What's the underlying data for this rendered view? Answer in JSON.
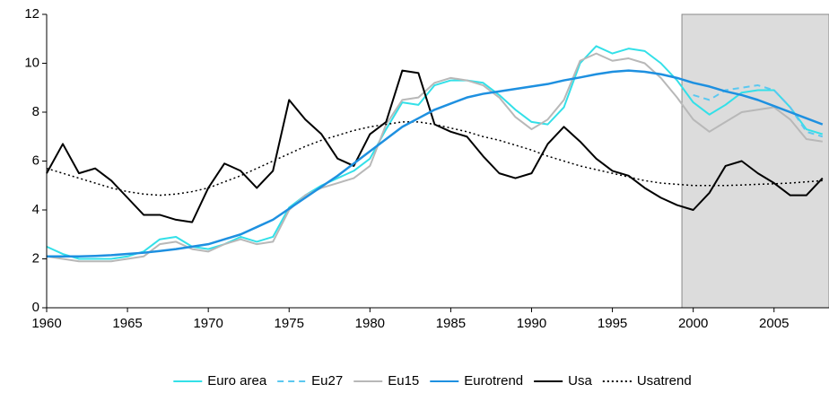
{
  "chart_data": {
    "type": "line",
    "x": [
      1960,
      1961,
      1962,
      1963,
      1964,
      1965,
      1966,
      1967,
      1968,
      1969,
      1970,
      1971,
      1972,
      1973,
      1974,
      1975,
      1976,
      1977,
      1978,
      1979,
      1980,
      1981,
      1982,
      1983,
      1984,
      1985,
      1986,
      1987,
      1988,
      1989,
      1990,
      1991,
      1992,
      1993,
      1994,
      1995,
      1996,
      1997,
      1998,
      1999,
      2000,
      2001,
      2002,
      2003,
      2004,
      2005,
      2006,
      2007,
      2008
    ],
    "xlim": [
      1960,
      2008.4
    ],
    "xticks": [
      1960,
      1965,
      1970,
      1975,
      1980,
      1985,
      1990,
      1995,
      2000,
      2005
    ],
    "ylim": [
      0,
      12
    ],
    "yticks": [
      0,
      2,
      4,
      6,
      8,
      10,
      12
    ],
    "grid": false,
    "shaded_region": [
      1999.3,
      2008.4
    ],
    "legend": "bottom",
    "series": [
      {
        "name": "Euro area",
        "color": "#33e0e8",
        "dash": "solid",
        "values": [
          2.5,
          2.2,
          2.0,
          2.0,
          2.0,
          2.1,
          2.3,
          2.8,
          2.9,
          2.5,
          2.4,
          2.6,
          2.9,
          2.7,
          2.9,
          4.1,
          4.6,
          5.0,
          5.3,
          5.6,
          6.1,
          7.3,
          8.4,
          8.3,
          9.1,
          9.3,
          9.3,
          9.2,
          8.7,
          8.1,
          7.6,
          7.5,
          8.2,
          10.0,
          10.7,
          10.4,
          10.6,
          10.5,
          10.0,
          9.3,
          8.4,
          7.9,
          8.3,
          8.8,
          8.9,
          8.9,
          8.2,
          7.3,
          7.1
        ]
      },
      {
        "name": "Eu27",
        "color": "#5bc8f0",
        "dash": "dashed",
        "values": [
          null,
          null,
          null,
          null,
          null,
          null,
          null,
          null,
          null,
          null,
          null,
          null,
          null,
          null,
          null,
          null,
          null,
          null,
          null,
          null,
          null,
          null,
          null,
          null,
          null,
          null,
          null,
          null,
          null,
          null,
          null,
          null,
          null,
          null,
          null,
          null,
          null,
          null,
          null,
          null,
          8.7,
          8.5,
          8.9,
          9.0,
          9.1,
          8.9,
          8.2,
          7.2,
          7.0
        ]
      },
      {
        "name": "Eu15",
        "color": "#b8b8b8",
        "dash": "solid",
        "values": [
          2.1,
          2.0,
          1.9,
          1.9,
          1.9,
          2.0,
          2.1,
          2.6,
          2.7,
          2.4,
          2.3,
          2.6,
          2.8,
          2.6,
          2.7,
          4.0,
          4.6,
          4.9,
          5.1,
          5.3,
          5.8,
          7.5,
          8.5,
          8.6,
          9.2,
          9.4,
          9.3,
          9.1,
          8.6,
          7.8,
          7.3,
          7.7,
          8.5,
          10.1,
          10.4,
          10.1,
          10.2,
          10.0,
          9.4,
          8.6,
          7.7,
          7.2,
          7.6,
          8.0,
          8.1,
          8.2,
          7.7,
          6.9,
          6.8
        ]
      },
      {
        "name": "Eurotrend",
        "color": "#1e90e0",
        "dash": "solid",
        "values": [
          2.1,
          2.1,
          2.1,
          2.12,
          2.15,
          2.2,
          2.25,
          2.32,
          2.4,
          2.5,
          2.6,
          2.8,
          3.0,
          3.3,
          3.6,
          4.05,
          4.5,
          4.95,
          5.4,
          5.9,
          6.4,
          6.9,
          7.4,
          7.75,
          8.1,
          8.35,
          8.6,
          8.75,
          8.85,
          8.95,
          9.05,
          9.15,
          9.3,
          9.42,
          9.55,
          9.65,
          9.7,
          9.65,
          9.55,
          9.4,
          9.2,
          9.05,
          8.85,
          8.7,
          8.5,
          8.25,
          8.0,
          7.75,
          7.5
        ]
      },
      {
        "name": "Usa",
        "color": "#000000",
        "dash": "solid",
        "values": [
          5.5,
          6.7,
          5.5,
          5.7,
          5.2,
          4.5,
          3.8,
          3.8,
          3.6,
          3.5,
          4.9,
          5.9,
          5.6,
          4.9,
          5.6,
          8.5,
          7.7,
          7.1,
          6.1,
          5.8,
          7.1,
          7.6,
          9.7,
          9.6,
          7.5,
          7.2,
          7.0,
          6.2,
          5.5,
          5.3,
          5.5,
          6.7,
          7.4,
          6.8,
          6.1,
          5.6,
          5.4,
          4.9,
          4.5,
          4.2,
          4.0,
          4.7,
          5.8,
          6.0,
          5.5,
          5.1,
          4.6,
          4.6,
          5.3
        ]
      },
      {
        "name": "Usatrend",
        "color": "#000000",
        "dash": "dotted",
        "values": [
          5.7,
          5.5,
          5.3,
          5.1,
          4.9,
          4.75,
          4.65,
          4.6,
          4.65,
          4.75,
          4.9,
          5.15,
          5.4,
          5.7,
          6.0,
          6.3,
          6.6,
          6.85,
          7.05,
          7.25,
          7.4,
          7.5,
          7.6,
          7.6,
          7.5,
          7.35,
          7.2,
          7.0,
          6.85,
          6.65,
          6.45,
          6.2,
          6.0,
          5.8,
          5.65,
          5.5,
          5.35,
          5.2,
          5.1,
          5.05,
          5.0,
          5.0,
          5.0,
          5.02,
          5.05,
          5.07,
          5.1,
          5.15,
          5.2
        ]
      }
    ]
  }
}
